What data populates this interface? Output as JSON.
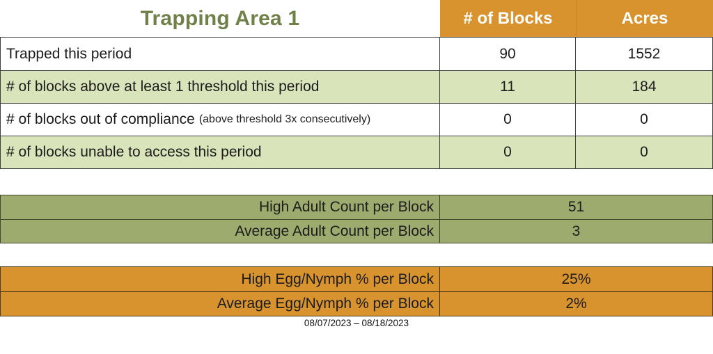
{
  "title": "Trapping Area 1",
  "colors": {
    "header_orange": "#D8922E",
    "row_light_green": "#D9E4BA",
    "adult_olive": "#9DAB6E",
    "egg_orange": "#D8932F",
    "title_green": "#6F8048"
  },
  "summary_table": {
    "columns": {
      "blocks": "# of Blocks",
      "acres": "Acres"
    },
    "rows": [
      {
        "label": "Trapped this period",
        "note": "",
        "blocks": "90",
        "acres": "1552"
      },
      {
        "label": "# of blocks above at least 1 threshold this period",
        "note": "",
        "blocks": "11",
        "acres": "184"
      },
      {
        "label": "# of blocks out of compliance",
        "note": "(above threshold 3x consecutively)",
        "blocks": "0",
        "acres": "0"
      },
      {
        "label": "# of blocks unable to access this period",
        "note": "",
        "blocks": "0",
        "acres": "0"
      }
    ]
  },
  "adult_table": {
    "rows": [
      {
        "label": "High Adult Count per Block",
        "value": "51"
      },
      {
        "label": "Average Adult Count per Block",
        "value": "3"
      }
    ]
  },
  "egg_table": {
    "rows": [
      {
        "label": "High Egg/Nymph % per Block",
        "value": "25%"
      },
      {
        "label": "Average Egg/Nymph % per Block",
        "value": "2%"
      }
    ]
  },
  "date_range": "08/07/2023 – 08/18/2023"
}
